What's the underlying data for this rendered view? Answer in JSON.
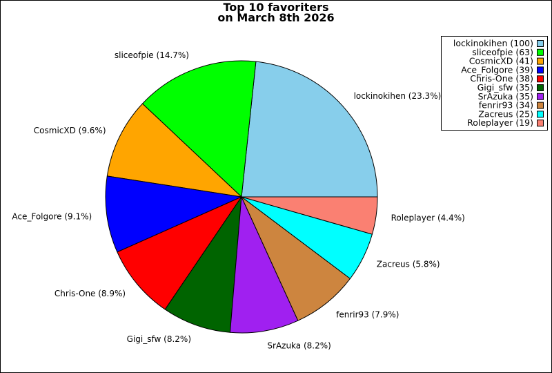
{
  "chart_data": {
    "type": "pie",
    "title_lines": [
      "Top 10 favoriters",
      "on March 8th 2026"
    ],
    "slices": [
      {
        "name": "lockinokihen",
        "value": 100,
        "slice_label": "lockinokihen (23.3%)",
        "legend_label": "lockinokihen (100)",
        "color": "#87CEEB"
      },
      {
        "name": "sliceofpie",
        "value": 63,
        "slice_label": "sliceofpie (14.7%)",
        "legend_label": "sliceofpie (63)",
        "color": "#00FF00"
      },
      {
        "name": "CosmicXD",
        "value": 41,
        "slice_label": "CosmicXD (9.6%)",
        "legend_label": "CosmicXD (41)",
        "color": "#FFA500"
      },
      {
        "name": "Ace_Folgore",
        "value": 39,
        "slice_label": "Ace_Folgore (9.1%)",
        "legend_label": "Ace_Folgore (39)",
        "color": "#0000FF"
      },
      {
        "name": "Chris-One",
        "value": 38,
        "slice_label": "Chris-One (8.9%)",
        "legend_label": "Chris-One (38)",
        "color": "#FF0000"
      },
      {
        "name": "Gigi_sfw",
        "value": 35,
        "slice_label": "Gigi_sfw (8.2%)",
        "legend_label": "Gigi_sfw (35)",
        "color": "#006400"
      },
      {
        "name": "SrAzuka",
        "value": 35,
        "slice_label": "SrAzuka (8.2%)",
        "legend_label": "SrAzuka (35)",
        "color": "#A020F0"
      },
      {
        "name": "fenrir93",
        "value": 34,
        "slice_label": "fenrir93 (7.9%)",
        "legend_label": "fenrir93 (34)",
        "color": "#CD853F"
      },
      {
        "name": "Zacreus",
        "value": 25,
        "slice_label": "Zacreus (5.8%)",
        "legend_label": "Zacreus (25)",
        "color": "#00FFFF"
      },
      {
        "name": "Roleplayer",
        "value": 19,
        "slice_label": "Roleplayer (4.4%)",
        "legend_label": "Roleplayer (19)",
        "color": "#FA8072"
      }
    ],
    "start_angle": "3 o'clock",
    "direction": "counterclockwise",
    "legend_position": "top-right"
  }
}
